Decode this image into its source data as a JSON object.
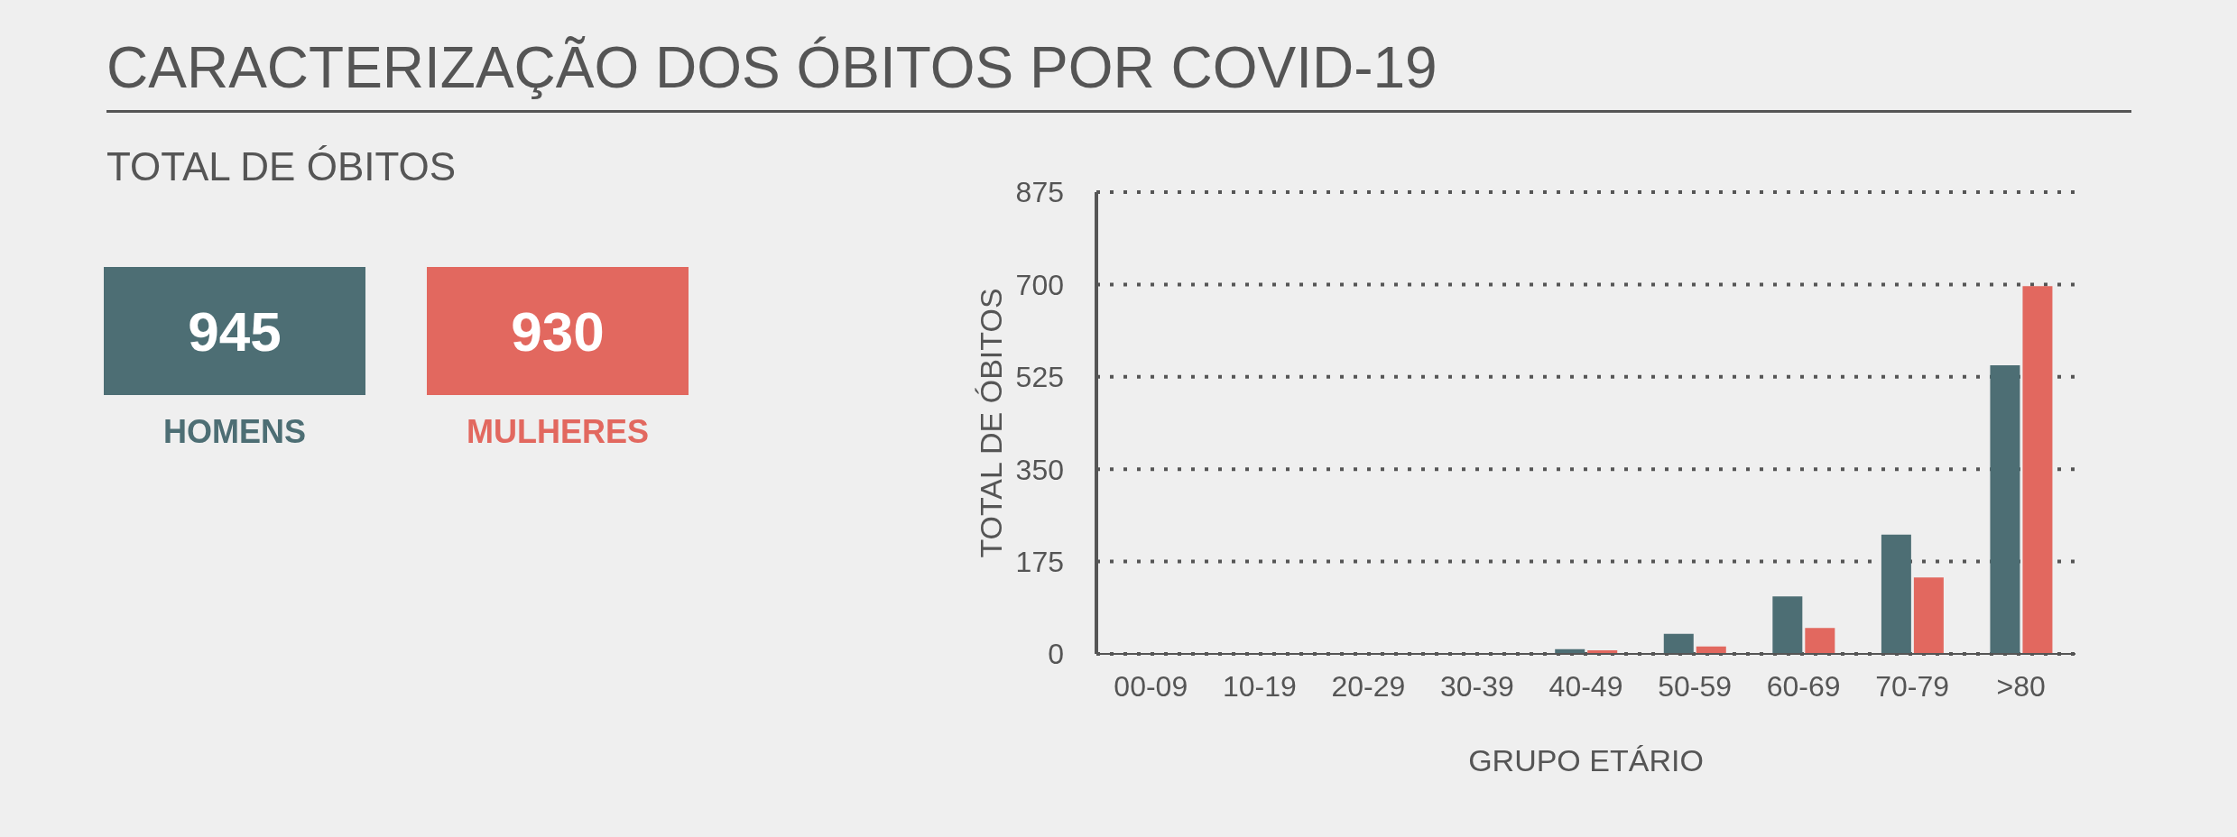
{
  "chart_data": [
    {
      "type": "other",
      "title": "CARACTERIZAÇÃO DOS ÓBITOS POR COVID-19",
      "subtitle": "TOTAL DE ÓBITOS",
      "categories": [
        "HOMENS",
        "MULHERES"
      ],
      "values": [
        945,
        930
      ],
      "data_labels": true,
      "colors": [
        "#4d6e74",
        "#e2685f"
      ]
    },
    {
      "type": "bar",
      "categories": [
        "00-09",
        "10-19",
        "20-29",
        "30-39",
        "40-49",
        "50-59",
        "60-69",
        "70-79",
        ">80"
      ],
      "xlabel": "GRUPO ETÁRIO",
      "ylabel": "TOTAL DE ÓBITOS",
      "series": [
        {
          "color": "#4d6e74",
          "values": [
            0,
            0,
            0,
            0,
            9,
            38,
            109,
            226,
            547
          ]
        },
        {
          "color": "#e2685f",
          "values": [
            0,
            0,
            0,
            0,
            7,
            14,
            49,
            145,
            697
          ]
        }
      ],
      "ylim": [
        0,
        875
      ],
      "yticks": [
        0,
        175,
        350,
        525,
        700,
        875
      ],
      "grid": "y"
    }
  ]
}
